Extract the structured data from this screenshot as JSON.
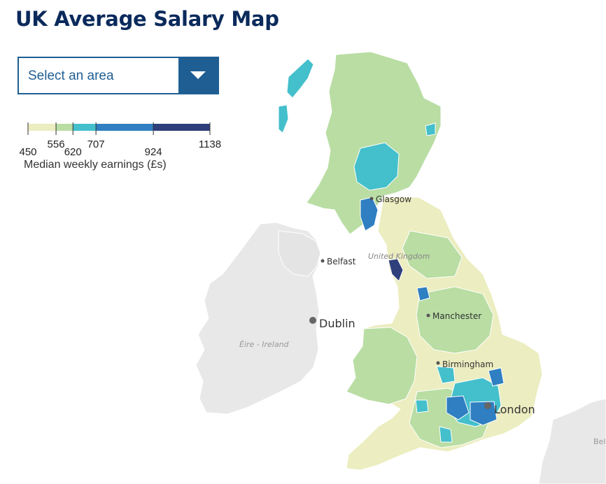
{
  "header": {
    "title": "UK Average Salary Map"
  },
  "area_select": {
    "label": "Select an area"
  },
  "legend": {
    "title": "Median weekly earnings (£s)",
    "breaks": [
      "450",
      "556",
      "620",
      "707",
      "924",
      "1138"
    ],
    "colors": [
      "#ecedc0",
      "#b9dda3",
      "#44bfcc",
      "#2f7fc2",
      "#2e3f7c"
    ]
  },
  "map": {
    "cities": {
      "glasgow": "Glasgow",
      "belfast": "Belfast",
      "manchester": "Manchester",
      "birmingham": "Birmingham",
      "london": "London",
      "dublin": "Dublin"
    },
    "regions": {
      "uk": "United Kingdom",
      "ireland": "Éire - Ireland",
      "belgium_partial": "Bel"
    },
    "colors": {
      "land_other": "#e8e8e8",
      "band_lowest": "#ecedc0",
      "band_low": "#b9dda3",
      "band_mid": "#44bfcc",
      "band_high": "#2f7fc2",
      "band_top": "#2e3f7c"
    }
  }
}
